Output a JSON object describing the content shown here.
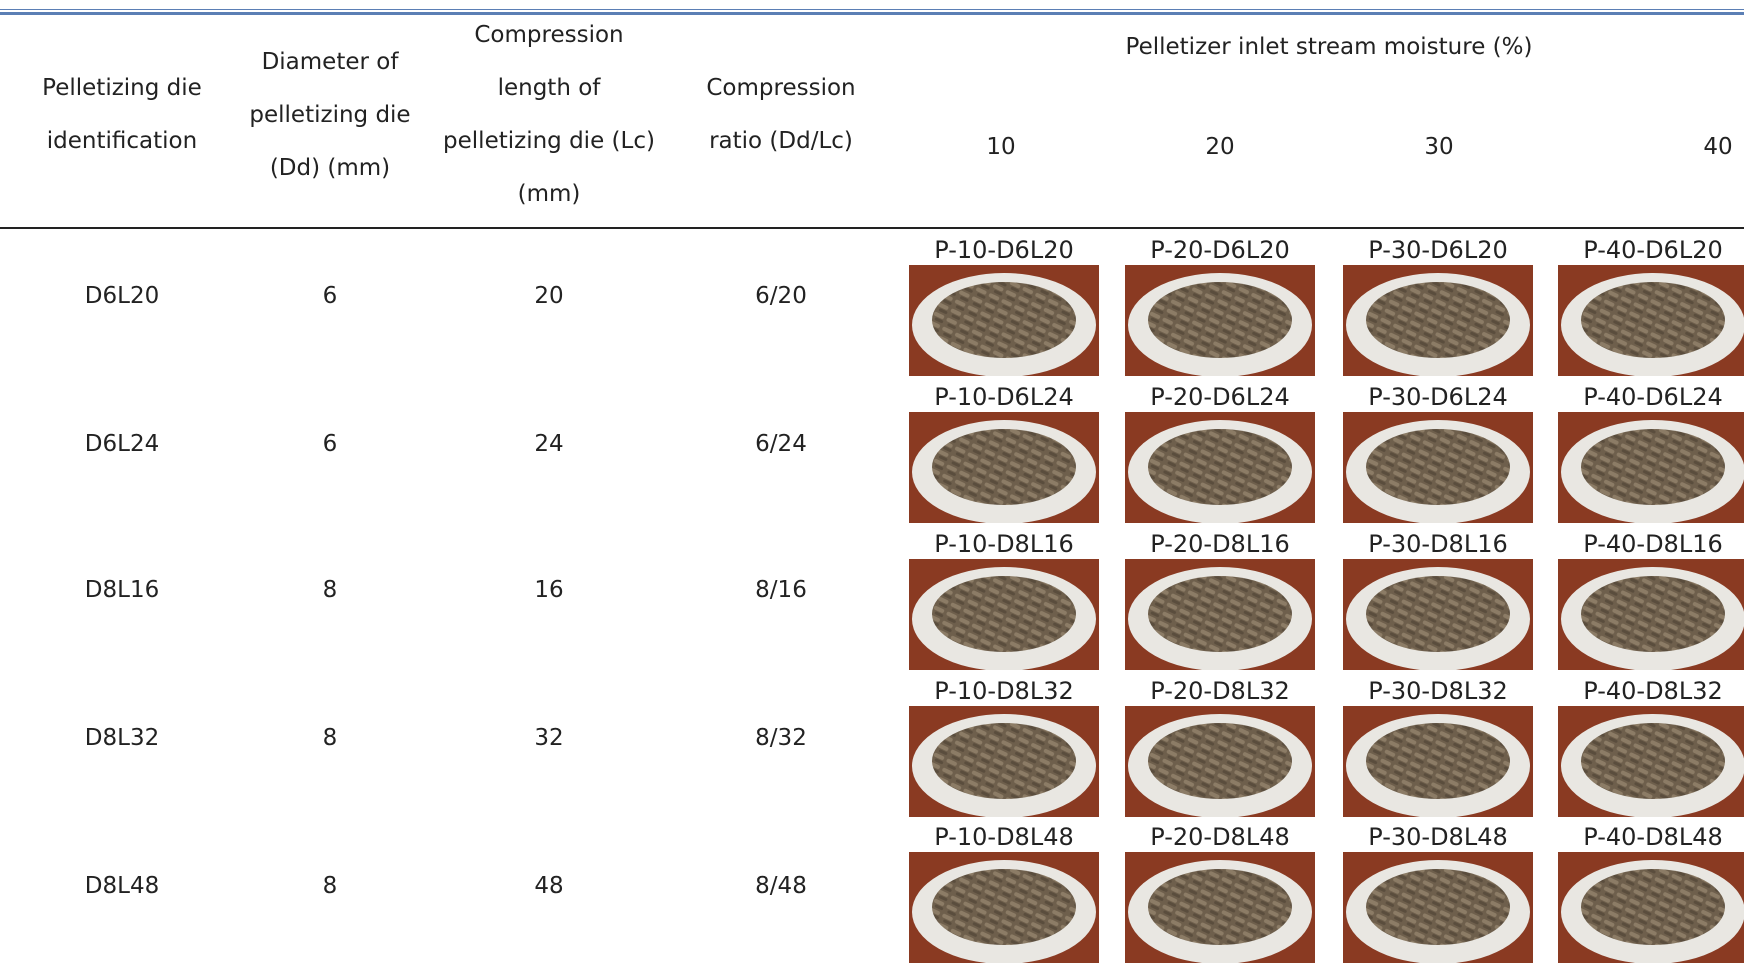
{
  "table": {
    "columns": [
      {
        "lines": [
          "Pelletizing die",
          "identification"
        ]
      },
      {
        "lines": [
          "Diameter of",
          "pelletizing die",
          "(Dd) (mm)"
        ]
      },
      {
        "lines": [
          "Compression",
          "length of",
          "pelletizing die (Lc)",
          "(mm)"
        ]
      },
      {
        "lines": [
          "Compression",
          "ratio (Dd/Lc)"
        ]
      }
    ],
    "group_title": "Pelletizer inlet stream moisture (%)",
    "moisture": [
      "10",
      "20",
      "30",
      "40"
    ],
    "rows": [
      {
        "cells": [
          "D6L20",
          "6",
          "20",
          "6/20"
        ],
        "photos": [
          "P-10-D6L20",
          "P-20-D6L20",
          "P-30-D6L20",
          "P-40-D6L20"
        ]
      },
      {
        "cells": [
          "D6L24",
          "6",
          "24",
          "6/24"
        ],
        "photos": [
          "P-10-D6L24",
          "P-20-D6L24",
          "P-30-D6L24",
          "P-40-D6L24"
        ]
      },
      {
        "cells": [
          "D8L16",
          "8",
          "16",
          "8/16"
        ],
        "photos": [
          "P-10-D8L16",
          "P-20-D8L16",
          "P-30-D8L16",
          "P-40-D8L16"
        ]
      },
      {
        "cells": [
          "D8L32",
          "8",
          "32",
          "8/32"
        ],
        "photos": [
          "P-10-D8L32",
          "P-20-D8L32",
          "P-30-D8L32",
          "P-40-D8L32"
        ]
      },
      {
        "cells": [
          "D8L48",
          "8",
          "48",
          "8/48"
        ],
        "photos": [
          "P-10-D8L48",
          "P-20-D8L48",
          "P-30-D8L48",
          "P-40-D8L48"
        ]
      }
    ]
  }
}
